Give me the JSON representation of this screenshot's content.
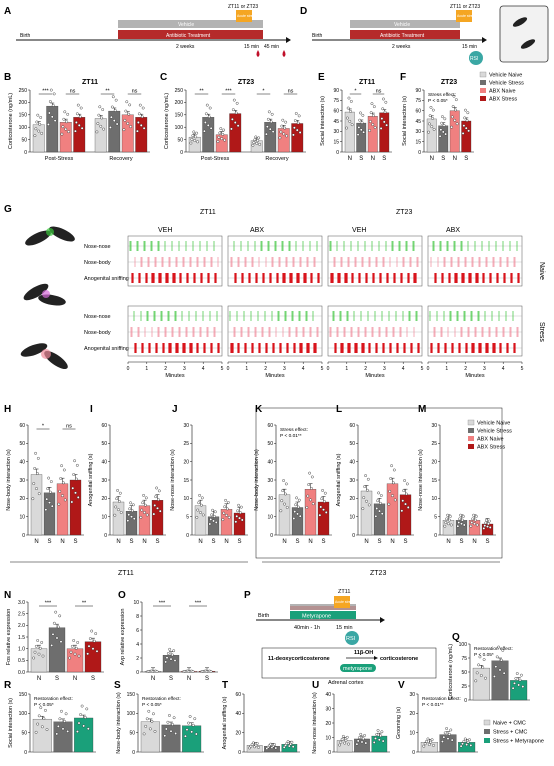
{
  "colors": {
    "naive": "#d9d9d9",
    "stress": "#6e6e6e",
    "abx_naive": "#f08080",
    "abx_stress": "#b01818",
    "metyrapone": "#1aa07a",
    "vehicle_bar": "#b3b3b3",
    "abx_bar": "#b52a2a",
    "stress_box": "#f5a623",
    "rsi": "#3aa7a4",
    "raster_green": "#39c43a",
    "raster_pink": "#f08a9a",
    "raster_red": "#d9141c"
  },
  "panel_letters": [
    "A",
    "B",
    "C",
    "D",
    "E",
    "F",
    "G",
    "H",
    "I",
    "J",
    "K",
    "L",
    "M",
    "N",
    "O",
    "P",
    "Q",
    "R",
    "S",
    "T",
    "U",
    "V"
  ],
  "timelineA": {
    "birth": "Birth",
    "stress_label": "ZT11 or ZT23",
    "acute_stress": "Acute stress",
    "vehicle": "Vehicle",
    "abx": "Antibiotic Treatment",
    "duration": "2 weeks",
    "t15": "15 min",
    "t45": "45 min"
  },
  "timelineD": {
    "birth": "Birth",
    "stress_label": "ZT11 or ZT23",
    "acute_stress": "Acute stress",
    "vehicle": "Vehicle",
    "abx": "Antibiotic Treatment",
    "duration": "2 weeks",
    "t15": "15 min",
    "rsi": "RSI"
  },
  "legend1": [
    "Vehicle Naive",
    "Vehicle Stress",
    "ABX Naive",
    "ABX Stress"
  ],
  "legend2": [
    "Naive + CMC",
    "Stress + CMC",
    "Stress + Metyrapone"
  ],
  "panelB": {
    "title": "ZT11",
    "ylabel": "Corticosterone (ng/mL)",
    "groups": [
      "Post-Stress",
      "Recovery"
    ],
    "yticks": [
      "0",
      "50",
      "100",
      "150",
      "200",
      "250"
    ],
    "values": [
      [
        110,
        185,
        120,
        140
      ],
      [
        135,
        165,
        150,
        140
      ]
    ],
    "sig": [
      "***",
      "ns",
      "**",
      "ns"
    ]
  },
  "panelC": {
    "title": "ZT23",
    "ylabel": "Corticosterone (ng/mL)",
    "groups": [
      "Post-Stress",
      "Recovery"
    ],
    "yticks": [
      "0",
      "50",
      "100",
      "150",
      "200",
      "250"
    ],
    "values": [
      [
        60,
        140,
        70,
        155
      ],
      [
        45,
        120,
        95,
        115
      ]
    ],
    "sig": [
      "**",
      "***",
      "*",
      "ns"
    ]
  },
  "panelE": {
    "title": "ZT11",
    "ylabel": "Social interaction (s)",
    "xt": [
      "N",
      "S",
      "N",
      "S"
    ],
    "yticks": [
      "0",
      "15",
      "30",
      "45",
      "60",
      "75",
      "90"
    ],
    "values": [
      58,
      42,
      52,
      57
    ],
    "sig": [
      "*",
      "ns"
    ]
  },
  "panelF": {
    "title": "ZT23",
    "ylabel": "Social interaction (s)",
    "xt": [
      "N",
      "S",
      "N",
      "S"
    ],
    "yticks": [
      "0",
      "15",
      "30",
      "45",
      "60",
      "75",
      "90"
    ],
    "values": [
      48,
      38,
      60,
      45
    ],
    "note": "Stress effect:",
    "p": "P < 0.05*"
  },
  "panelG": {
    "cols": [
      "VEH",
      "ABX",
      "VEH",
      "ABX"
    ],
    "zt": [
      "ZT11",
      "ZT23"
    ],
    "rows": [
      "Nose-nose",
      "Nose-body",
      "Anogenital sniffing"
    ],
    "conditions": [
      "Naive",
      "Stress"
    ],
    "xticks": [
      "0",
      "1",
      "2",
      "3",
      "4",
      "5"
    ],
    "xlabel": "Minutes"
  },
  "panelH": {
    "ylabel": "Nose-body interaction (s)",
    "xt": [
      "N",
      "S",
      "N",
      "S"
    ],
    "yticks": [
      "0",
      "10",
      "20",
      "30",
      "40",
      "50",
      "60"
    ],
    "values": [
      33,
      23,
      28,
      30
    ],
    "sig": [
      "*",
      "ns"
    ]
  },
  "panelI": {
    "ylabel": "Anogenital sniffing (s)",
    "xt": [
      "N",
      "S",
      "N",
      "S"
    ],
    "yticks": [
      "0",
      "10",
      "20",
      "30",
      "40",
      "50",
      "60"
    ],
    "values": [
      18,
      13,
      16,
      19
    ]
  },
  "panelJ": {
    "ylabel": "Nose-nose interaction (s)",
    "xt": [
      "N",
      "S",
      "N",
      "S"
    ],
    "yticks": [
      "0",
      "5",
      "10",
      "15",
      "20",
      "25",
      "30"
    ],
    "values": [
      8,
      5,
      7,
      6
    ]
  },
  "panelK": {
    "ylabel": "Nose-body interaction (s)",
    "xt": [
      "N",
      "S",
      "N",
      "S"
    ],
    "yticks": [
      "0",
      "10",
      "20",
      "30",
      "40",
      "50",
      "60"
    ],
    "values": [
      22,
      15,
      25,
      18
    ],
    "note": "Stress effect:",
    "p": "P < 0.01**"
  },
  "panelL": {
    "ylabel": "Anogenital sniffing (s)",
    "xt": [
      "N",
      "S",
      "N",
      "S"
    ],
    "yticks": [
      "0",
      "10",
      "20",
      "30",
      "40",
      "50",
      "60"
    ],
    "values": [
      24,
      17,
      28,
      22
    ]
  },
  "panelM": {
    "ylabel": "Nose-nose interaction (s)",
    "xt": [
      "N",
      "S",
      "N",
      "S"
    ],
    "yticks": [
      "0",
      "5",
      "10",
      "15",
      "20",
      "25",
      "30"
    ],
    "values": [
      4,
      4,
      4,
      3
    ]
  },
  "zt_group_labels": [
    "ZT11",
    "ZT23"
  ],
  "panelN": {
    "ylabel": "Fos relative expression",
    "xt": [
      "N",
      "S",
      "N",
      "S"
    ],
    "yticks": [
      "0.0",
      "0.5",
      "1.0",
      "1.5",
      "2.0",
      "2.5",
      "3.0"
    ],
    "values": [
      1.0,
      1.9,
      1.0,
      1.3
    ],
    "sig": [
      "***",
      "**",
      "ns"
    ]
  },
  "panelO": {
    "ylabel": "Avp relative expression",
    "xt": [
      "N",
      "S",
      "N",
      "S"
    ],
    "yticks": [
      "0",
      "2",
      "4",
      "6",
      "8",
      "10"
    ],
    "values": [
      0.1,
      2.4,
      0.1,
      0.1
    ],
    "sig": [
      "***",
      "***"
    ]
  },
  "panelP": {
    "birth": "Birth",
    "metyrapone": "Metyrapone",
    "zt11": "ZT11",
    "acute_stress": "Acute stress",
    "t1": "40min - 1h",
    "t15": "15 min",
    "rsi": "RSI",
    "substrate": "11-deoxycorticosterone",
    "enzyme": "11β-OH",
    "product": "corticosterone",
    "inhibitor": "metyrapone",
    "tissue": "Adrenal cortex"
  },
  "panelQ": {
    "ylabel": "Corticosterone (ng/mL)",
    "yticks": [
      "0",
      "25",
      "50",
      "75",
      "100"
    ],
    "values": [
      57,
      70,
      35
    ],
    "note": "Restoration effect:",
    "p": "P < 0.05*"
  },
  "panelR": {
    "ylabel": "Social interaction (s)",
    "yticks": [
      "0",
      "50",
      "100",
      "150"
    ],
    "values": [
      85,
      78,
      88
    ],
    "note": "Restoration effect:",
    "p": "P < 0.05*"
  },
  "panelS": {
    "ylabel": "Nose-body interaction (s)",
    "yticks": [
      "0",
      "50",
      "100",
      "150"
    ],
    "values": [
      78,
      70,
      68
    ],
    "note": "Restoration effect:",
    "p": "P < 0.05*"
  },
  "panelT": {
    "ylabel": "Anogenital sniffing (s)",
    "yticks": [
      "0",
      "20",
      "40",
      "60"
    ],
    "values": [
      7,
      6,
      8
    ]
  },
  "panelU": {
    "ylabel": "Nose-nose interaction (s)",
    "yticks": [
      "0",
      "10",
      "20",
      "30",
      "40"
    ],
    "values": [
      8,
      9,
      11
    ]
  },
  "panelV": {
    "ylabel": "Grooming (s)",
    "yticks": [
      "0",
      "10",
      "20",
      "30"
    ],
    "values": [
      5,
      9,
      5
    ],
    "note": "Restoration effect:",
    "p": "P < 0.01**"
  }
}
